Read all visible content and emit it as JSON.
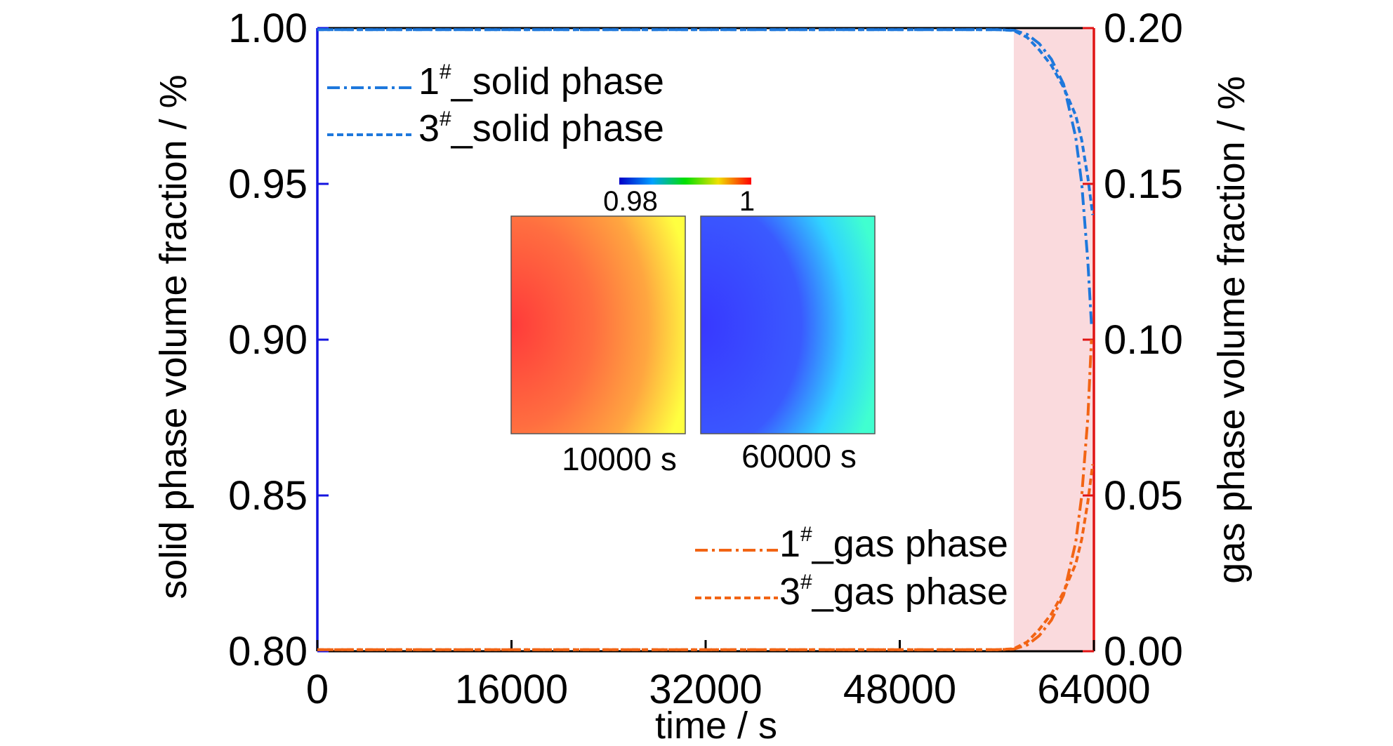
{
  "chart_data": {
    "type": "line",
    "xlabel": "time / s",
    "ylabel_left": "solid phase volume fraction / %",
    "ylabel_right": "gas phase volume fraction / %",
    "xlim": [
      0,
      64000
    ],
    "ylim_left": [
      0.8,
      1.0
    ],
    "ylim_right": [
      0.0,
      0.2
    ],
    "x_ticks": [
      "0",
      "16000",
      "32000",
      "48000",
      "64000"
    ],
    "y_left_ticks": [
      "0.80",
      "0.85",
      "0.90",
      "0.95",
      "1.00"
    ],
    "y_right_ticks": [
      "0.00",
      "0.05",
      "0.10",
      "0.15",
      "0.20"
    ],
    "grid": false,
    "left_axis_color": "#1414e0",
    "right_axis_color": "#e01414",
    "highlight_region": {
      "x_start": 57400,
      "x_end": 64000,
      "color": "#fadadd"
    },
    "series": [
      {
        "name": "1#_solid phase",
        "axis": "left",
        "color": "#1e78dc",
        "dash": "dashdot",
        "x": [
          0,
          56000,
          57400,
          58500,
          59500,
          60500,
          61500,
          62500,
          63000,
          63500,
          63800
        ],
        "y": [
          0.9995,
          0.9995,
          0.9993,
          0.998,
          0.995,
          0.99,
          0.982,
          0.965,
          0.95,
          0.925,
          0.905
        ]
      },
      {
        "name": "3#_solid phase",
        "axis": "left",
        "color": "#1e78dc",
        "dash": "dash",
        "x": [
          0,
          56000,
          57400,
          58500,
          59500,
          60500,
          61500,
          62500,
          63000,
          63500,
          63900
        ],
        "y": [
          0.9995,
          0.9995,
          0.9992,
          0.997,
          0.993,
          0.988,
          0.981,
          0.972,
          0.964,
          0.952,
          0.94
        ]
      },
      {
        "name": "1#_gas phase",
        "axis": "right",
        "color": "#f26414",
        "dash": "dashdot",
        "x": [
          0,
          56000,
          57400,
          58500,
          59500,
          60500,
          61500,
          62500,
          63000,
          63500,
          63800
        ],
        "y": [
          0.0005,
          0.0005,
          0.0007,
          0.002,
          0.005,
          0.01,
          0.018,
          0.035,
          0.05,
          0.075,
          0.1
        ]
      },
      {
        "name": "3#_gas phase",
        "axis": "right",
        "color": "#f26414",
        "dash": "dash",
        "x": [
          0,
          56000,
          57400,
          58500,
          59500,
          60500,
          61500,
          62500,
          63000,
          63500,
          63900
        ],
        "y": [
          0.0005,
          0.0005,
          0.0008,
          0.003,
          0.007,
          0.012,
          0.019,
          0.028,
          0.036,
          0.048,
          0.06
        ]
      }
    ],
    "inset": {
      "colorbar_min": "0.98",
      "colorbar_max": "1",
      "map_labels": [
        "10000 s",
        "60000 s"
      ]
    }
  }
}
